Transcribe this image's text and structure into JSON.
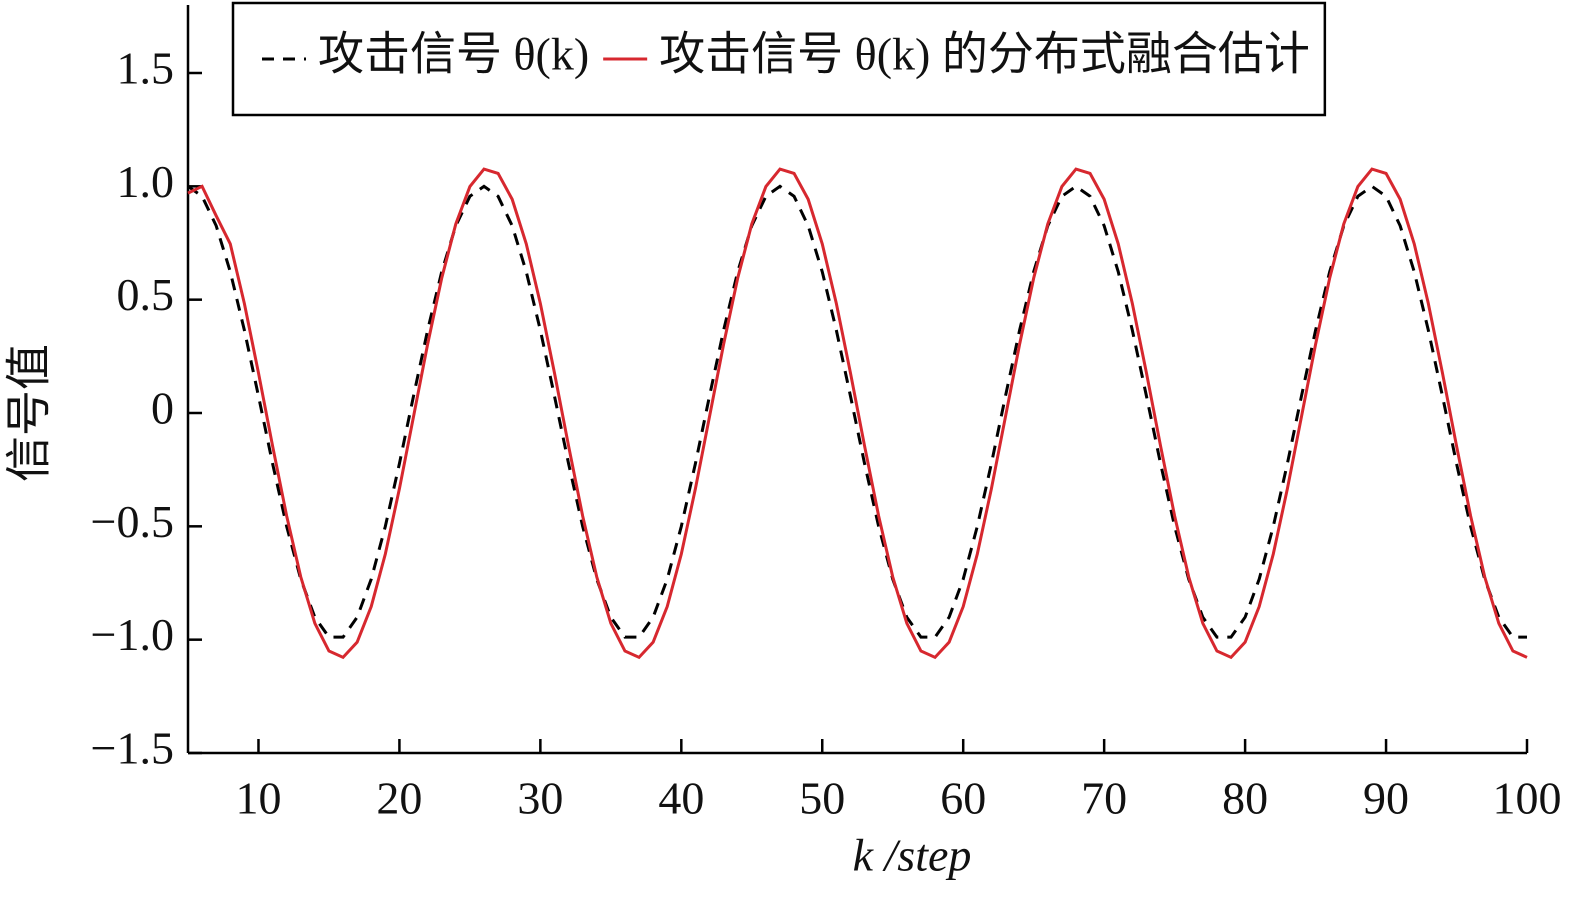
{
  "chart_data": {
    "type": "line",
    "xlabel": "k /step",
    "ylabel": "信号值",
    "x": [
      5,
      6,
      7,
      8,
      9,
      10,
      11,
      12,
      13,
      14,
      15,
      16,
      17,
      18,
      19,
      20,
      21,
      22,
      23,
      24,
      25,
      26,
      27,
      28,
      29,
      30,
      31,
      32,
      33,
      34,
      35,
      36,
      37,
      38,
      39,
      40,
      41,
      42,
      43,
      44,
      45,
      46,
      47,
      48,
      49,
      50,
      51,
      52,
      53,
      54,
      55,
      56,
      57,
      58,
      59,
      60,
      61,
      62,
      63,
      64,
      65,
      66,
      67,
      68,
      69,
      70,
      71,
      72,
      73,
      74,
      75,
      76,
      77,
      78,
      79,
      80,
      81,
      82,
      83,
      84,
      85,
      86,
      87,
      88,
      89,
      90,
      91,
      92,
      93,
      94,
      95,
      96,
      97,
      98,
      99,
      100
    ],
    "series": [
      {
        "name": "攻击信号 θ(k)",
        "color": "#000000",
        "dash": true,
        "values": [
          1.0,
          0.956,
          0.826,
          0.623,
          0.365,
          0.075,
          -0.223,
          -0.5,
          -0.733,
          -0.901,
          -0.989,
          -0.989,
          -0.901,
          -0.733,
          -0.5,
          -0.223,
          0.075,
          0.365,
          0.623,
          0.826,
          0.956,
          1.0,
          0.956,
          0.826,
          0.623,
          0.365,
          0.075,
          -0.223,
          -0.5,
          -0.733,
          -0.901,
          -0.989,
          -0.989,
          -0.901,
          -0.733,
          -0.5,
          -0.223,
          0.075,
          0.365,
          0.623,
          0.826,
          0.956,
          1.0,
          0.956,
          0.826,
          0.623,
          0.365,
          0.075,
          -0.223,
          -0.5,
          -0.733,
          -0.901,
          -0.989,
          -0.989,
          -0.901,
          -0.733,
          -0.5,
          -0.223,
          0.075,
          0.365,
          0.623,
          0.826,
          0.956,
          1.0,
          0.956,
          0.826,
          0.623,
          0.365,
          0.075,
          -0.223,
          -0.5,
          -0.733,
          -0.901,
          -0.989,
          -0.989,
          -0.901,
          -0.733,
          -0.5,
          -0.223,
          0.075,
          0.365,
          0.623,
          0.826,
          0.956,
          1.0,
          0.956,
          0.826,
          0.623,
          0.365,
          0.075,
          -0.223,
          -0.5,
          -0.733,
          -0.901,
          -0.989,
          -0.989
        ]
      },
      {
        "name": "攻击信号 θ(k) 的分布式融合估计",
        "color": "#d7282f",
        "dash": false,
        "values": [
          0.97,
          1.0,
          0.87,
          0.746,
          0.483,
          0.177,
          -0.145,
          -0.454,
          -0.723,
          -0.928,
          -1.05,
          -1.078,
          -1.011,
          -0.854,
          -0.622,
          -0.334,
          -0.016,
          0.303,
          0.595,
          0.834,
          0.999,
          1.076,
          1.057,
          0.943,
          0.746,
          0.483,
          0.177,
          -0.145,
          -0.454,
          -0.723,
          -0.928,
          -1.05,
          -1.078,
          -1.011,
          -0.854,
          -0.622,
          -0.334,
          -0.016,
          0.303,
          0.595,
          0.834,
          0.999,
          1.076,
          1.057,
          0.943,
          0.746,
          0.483,
          0.177,
          -0.145,
          -0.454,
          -0.723,
          -0.928,
          -1.05,
          -1.078,
          -1.011,
          -0.854,
          -0.622,
          -0.334,
          -0.016,
          0.303,
          0.595,
          0.834,
          0.999,
          1.076,
          1.057,
          0.943,
          0.746,
          0.483,
          0.177,
          -0.145,
          -0.454,
          -0.723,
          -0.928,
          -1.05,
          -1.078,
          -1.011,
          -0.854,
          -0.622,
          -0.334,
          -0.016,
          0.303,
          0.595,
          0.834,
          0.999,
          1.076,
          1.057,
          0.943,
          0.746,
          0.483,
          0.177,
          -0.145,
          -0.454,
          -0.723,
          -0.928,
          -1.05,
          -1.078
        ]
      }
    ],
    "xlim": [
      5,
      100
    ],
    "xticks": [
      10,
      20,
      30,
      40,
      50,
      60,
      70,
      80,
      90,
      100
    ],
    "ylim": [
      -1.5,
      1.8
    ],
    "yticks": [
      {
        "value": -1.5,
        "label": "−1.5"
      },
      {
        "value": -1,
        "label": "−1.0"
      },
      {
        "value": -0.5,
        "label": "−0.5"
      },
      0,
      0.5,
      {
        "value": 1,
        "label": "1.0"
      },
      1.5
    ],
    "grid": false,
    "legend": "upper right"
  }
}
